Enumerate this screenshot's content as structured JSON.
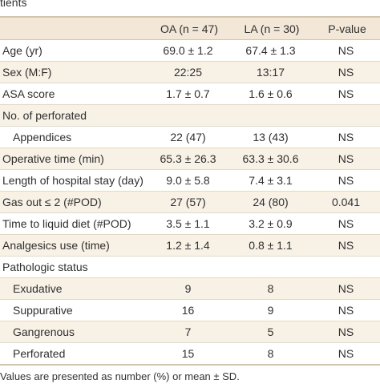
{
  "caption_fragment": "tients",
  "headers": [
    "",
    "OA (n = 47)",
    "LA (n = 30)",
    "P-value"
  ],
  "rows": [
    {
      "label": "Age (yr)",
      "oa": "69.0 ± 1.2",
      "la": "67.4 ± 1.3",
      "p": "NS",
      "indent": false
    },
    {
      "label": "Sex (M:F)",
      "oa": "22:25",
      "la": "13:17",
      "p": "NS",
      "indent": false
    },
    {
      "label": "ASA score",
      "oa": "1.7 ± 0.7",
      "la": "1.6 ± 0.6",
      "p": "NS",
      "indent": false
    },
    {
      "label": "No. of perforated",
      "oa": "",
      "la": "",
      "p": "",
      "indent": false
    },
    {
      "label": "Appendices",
      "oa": "22 (47)",
      "la": "13 (43)",
      "p": "NS",
      "indent": true
    },
    {
      "label": "Operative time (min)",
      "oa": "65.3 ± 26.3",
      "la": "63.3 ± 30.6",
      "p": "NS",
      "indent": false
    },
    {
      "label": "Length of hospital stay (day)",
      "oa": "9.0 ± 5.8",
      "la": "7.4 ± 3.1",
      "p": "NS",
      "indent": false
    },
    {
      "label": "Gas out ≤ 2 (#POD)",
      "oa": "27 (57)",
      "la": "24 (80)",
      "p": "0.041",
      "indent": false
    },
    {
      "label": "Time to liquid diet (#POD)",
      "oa": "3.5 ± 1.1",
      "la": "3.2 ± 0.9",
      "p": "NS",
      "indent": false
    },
    {
      "label": "Analgesics use (time)",
      "oa": "1.2 ± 1.4",
      "la": "0.8 ± 1.1",
      "p": "NS",
      "indent": false
    },
    {
      "label": "Pathologic status",
      "oa": "",
      "la": "",
      "p": "",
      "indent": false
    },
    {
      "label": "Exudative",
      "oa": "9",
      "la": "8",
      "p": "NS",
      "indent": true
    },
    {
      "label": "Suppurative",
      "oa": "16",
      "la": "9",
      "p": "NS",
      "indent": true
    },
    {
      "label": "Gangrenous",
      "oa": "7",
      "la": "5",
      "p": "NS",
      "indent": true
    },
    {
      "label": "Perforated",
      "oa": "15",
      "la": "8",
      "p": "NS",
      "indent": true
    }
  ],
  "footnote": "Values are presented as number (%) or mean ± SD."
}
